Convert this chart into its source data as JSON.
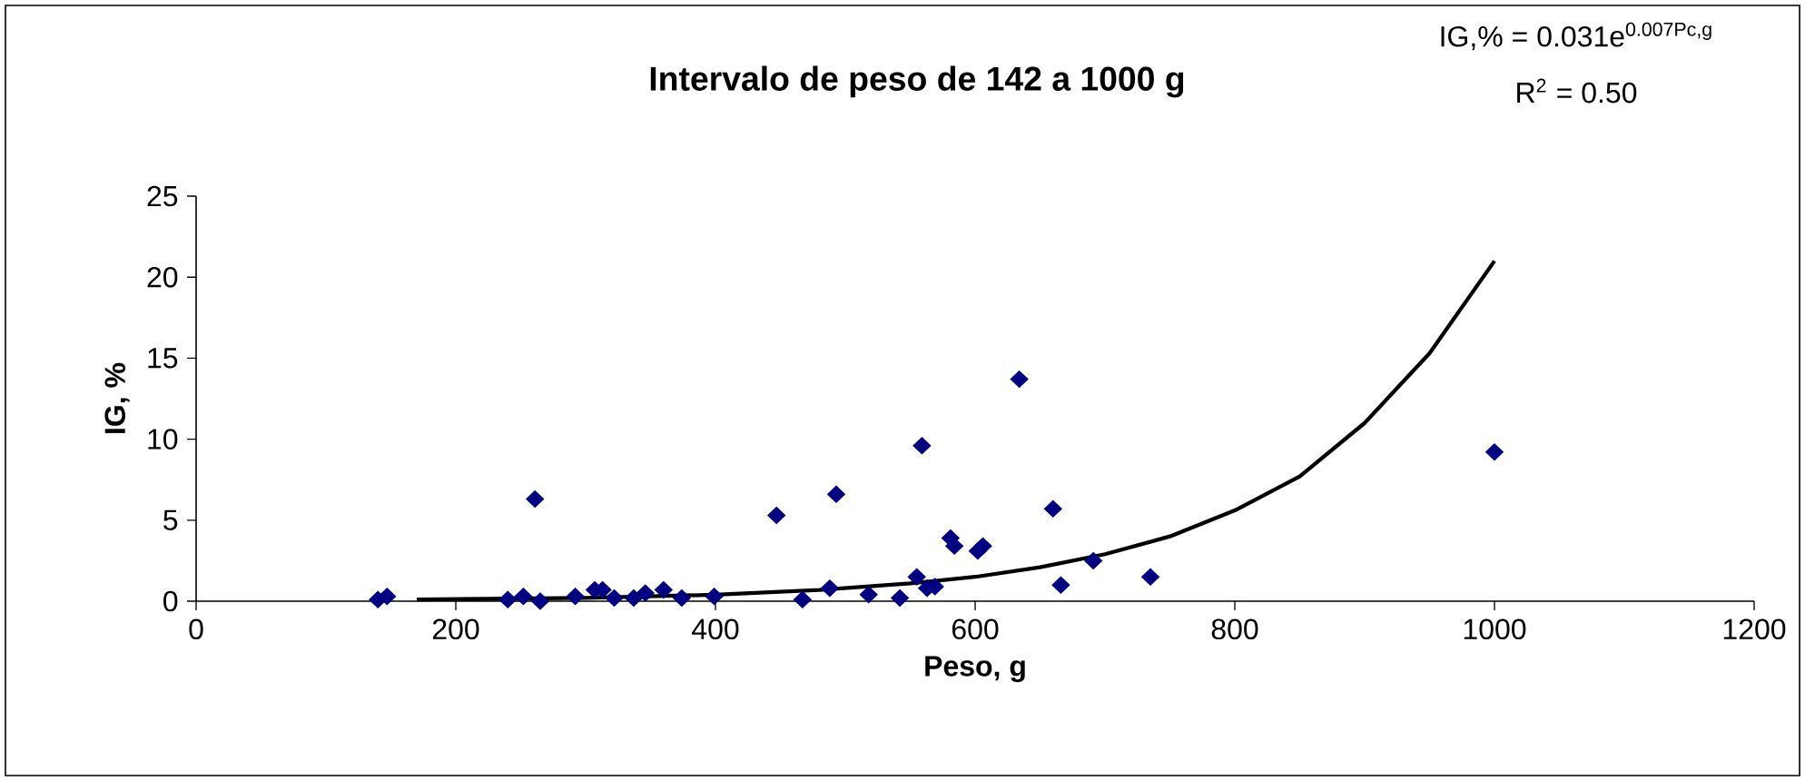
{
  "chart_data": {
    "type": "scatter",
    "title": "Intervalo de peso de 142 a 1000 g",
    "xlabel": "Peso, g",
    "ylabel": "IG, %",
    "annotations": [
      "IG,% = 0.031e$^{0.007Pc,g}$",
      "R$^{2}$ = 0.50"
    ],
    "xlim": [
      0,
      1200
    ],
    "xticks": [
      0,
      200,
      400,
      600,
      800,
      1000,
      1200
    ],
    "ylim": [
      0,
      25
    ],
    "yticks": [
      0,
      5,
      10,
      15,
      20,
      25
    ],
    "marker": "diamond",
    "series": [
      {
        "color": "#000080",
        "x": [
          140,
          147,
          240,
          252,
          261,
          265,
          292,
          307,
          313,
          322,
          337,
          346,
          360,
          374,
          399,
          447,
          467,
          488,
          493,
          518,
          542,
          555,
          559,
          563,
          569,
          581,
          584,
          602,
          606,
          634,
          660,
          666,
          691,
          735,
          1000
        ],
        "values": [
          0.1,
          0.3,
          0.1,
          0.3,
          6.3,
          0,
          0.3,
          0.7,
          0.7,
          0.2,
          0.2,
          0.5,
          0.7,
          0.2,
          0.3,
          5.3,
          0.1,
          0.8,
          6.6,
          0.4,
          0.2,
          1.5,
          9.6,
          0.8,
          0.9,
          3.9,
          3.4,
          3.1,
          3.4,
          13.7,
          5.7,
          1.0,
          2.5,
          1.5,
          9.2
        ]
      },
      {
        "type": "line",
        "marker": "none",
        "color": "#000000",
        "x": [
          170,
          300,
          400,
          480,
          550,
          600,
          650,
          700,
          750,
          800,
          850,
          900,
          950,
          1000
        ],
        "values": [
          0.1,
          0.2,
          0.4,
          0.7,
          1.1,
          1.5,
          2.1,
          2.9,
          4.0,
          5.6,
          7.7,
          11.0,
          15.3,
          21.0
        ]
      }
    ]
  }
}
